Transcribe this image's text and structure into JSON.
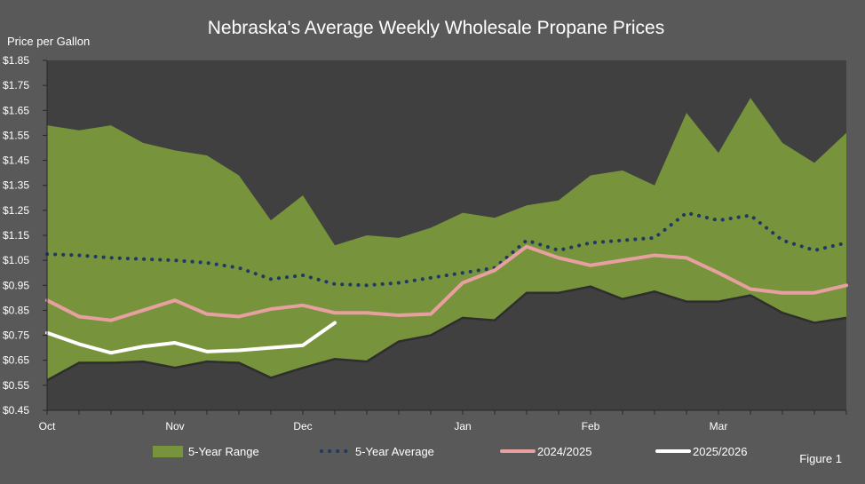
{
  "chart_data": {
    "type": "line",
    "title": "Nebraska's Average Weekly Wholesale Propane Prices",
    "ylabel": "Price per Gallon",
    "xlabel": "",
    "figure_label": "Figure 1",
    "ylim": [
      0.45,
      1.85
    ],
    "y_ticks": [
      "$1.85",
      "$1.75",
      "$1.65",
      "$1.55",
      "$1.45",
      "$1.35",
      "$1.25",
      "$1.15",
      "$1.05",
      "$0.95",
      "$0.85",
      "$0.75",
      "$0.65",
      "$0.55",
      "$0.45"
    ],
    "y_tick_values": [
      1.85,
      1.75,
      1.65,
      1.55,
      1.45,
      1.35,
      1.25,
      1.15,
      1.05,
      0.95,
      0.85,
      0.75,
      0.65,
      0.55,
      0.45
    ],
    "x_count": 26,
    "x_tick_labels": [
      {
        "label": "Oct",
        "index": 0
      },
      {
        "label": "Nov",
        "index": 4
      },
      {
        "label": "Dec",
        "index": 8
      },
      {
        "label": "Jan",
        "index": 13
      },
      {
        "label": "Feb",
        "index": 17
      },
      {
        "label": "Mar",
        "index": 21
      }
    ],
    "grid": false,
    "legend_position": "bottom",
    "colors": {
      "background": "#595959",
      "plot_background": "#404040",
      "range_fill": "#77933C",
      "range_edge": "#2e2e2e",
      "avg_line": "#1F3864",
      "season_2024": "#E6A0A0",
      "season_2025": "#FFFFFF"
    },
    "series": [
      {
        "name": "5-Year Range",
        "kind": "band",
        "high": [
          1.59,
          1.57,
          1.59,
          1.52,
          1.49,
          1.47,
          1.39,
          1.21,
          1.31,
          1.11,
          1.15,
          1.14,
          1.18,
          1.24,
          1.22,
          1.27,
          1.29,
          1.39,
          1.41,
          1.35,
          1.64,
          1.48,
          1.7,
          1.52,
          1.44,
          1.56
        ],
        "low": [
          0.57,
          0.64,
          0.64,
          0.645,
          0.62,
          0.645,
          0.64,
          0.58,
          0.62,
          0.655,
          0.645,
          0.725,
          0.75,
          0.82,
          0.81,
          0.92,
          0.92,
          0.945,
          0.895,
          0.925,
          0.885,
          0.885,
          0.91,
          0.84,
          0.8,
          0.82
        ]
      },
      {
        "name": "5-Year Average",
        "kind": "dotted",
        "values": [
          1.075,
          1.07,
          1.06,
          1.055,
          1.05,
          1.04,
          1.02,
          0.975,
          0.99,
          0.955,
          0.95,
          0.96,
          0.98,
          1.0,
          1.02,
          1.13,
          1.09,
          1.12,
          1.13,
          1.14,
          1.24,
          1.21,
          1.23,
          1.13,
          1.09,
          1.12
        ]
      },
      {
        "name": "2024/2025",
        "kind": "line",
        "values": [
          0.89,
          0.825,
          0.81,
          0.85,
          0.89,
          0.835,
          0.825,
          0.855,
          0.87,
          0.84,
          0.84,
          0.83,
          0.835,
          0.96,
          1.01,
          1.105,
          1.06,
          1.03,
          1.05,
          1.07,
          1.06,
          1.0,
          0.935,
          0.92,
          0.92,
          0.95
        ]
      },
      {
        "name": "2025/2026",
        "kind": "line",
        "values": [
          0.76,
          0.715,
          0.68,
          0.705,
          0.72,
          0.685,
          0.69,
          0.7,
          0.71,
          0.8
        ]
      }
    ]
  }
}
